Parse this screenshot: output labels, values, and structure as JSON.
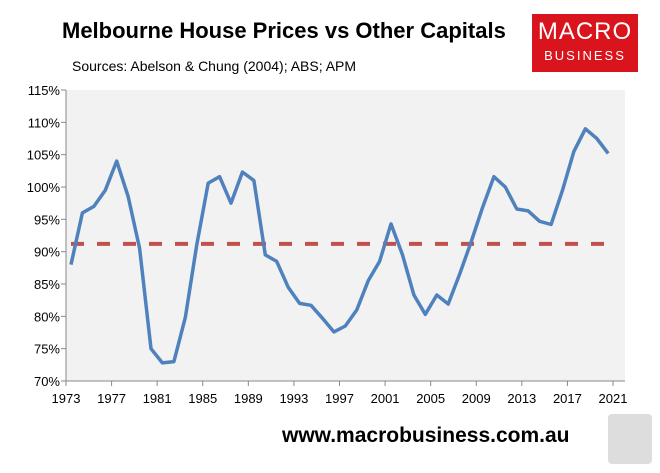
{
  "chart_data": {
    "type": "line",
    "title": "Melbourne House Prices vs Other Capitals",
    "subtitle": "Sources: Abelson & Chung (2004); ABS; APM",
    "x_start": 1973,
    "x_end": 2020,
    "y": [
      88,
      96,
      97,
      99.5,
      104,
      98.5,
      90.5,
      75,
      72.8,
      73,
      79.8,
      91,
      100.6,
      101.6,
      97.5,
      102.3,
      101,
      89.5,
      88.5,
      84.5,
      82,
      81.7,
      79.7,
      77.6,
      78.5,
      81,
      85.5,
      88.5,
      94.3,
      89.5,
      83.3,
      80.3,
      83.3,
      81.9,
      86.5,
      91.5,
      96.8,
      101.6,
      100,
      96.6,
      96.3,
      94.7,
      94.2,
      99.5,
      105.5,
      109,
      107.5,
      105.2
    ],
    "average": 91.2,
    "ylim": [
      70,
      115
    ],
    "yticks": [
      "70%",
      "75%",
      "80%",
      "85%",
      "90%",
      "95%",
      "100%",
      "105%",
      "110%",
      "115%"
    ],
    "xticks": [
      "1973",
      "1977",
      "1981",
      "1985",
      "1989",
      "1993",
      "1997",
      "2001",
      "2005",
      "2009",
      "2013",
      "2017",
      "2021"
    ],
    "colors": {
      "line": "#4f81bd",
      "average": "#c0504d",
      "plot_bg": "#f2f2f2"
    },
    "grid": false
  },
  "logo": {
    "line1": "MACRO",
    "line2": "BUSINESS"
  },
  "footer_url": "www.macrobusiness.com.au"
}
